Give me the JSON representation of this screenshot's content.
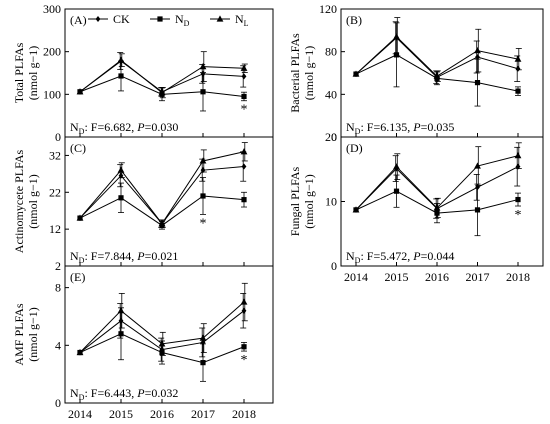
{
  "legend": [
    {
      "label": "CK",
      "sub": "",
      "marker": "diamond"
    },
    {
      "label": "N",
      "sub": "D",
      "marker": "square"
    },
    {
      "label": "N",
      "sub": "L",
      "marker": "triangle"
    }
  ],
  "colors": {
    "ink": "#000000",
    "axis": "#000000",
    "background": "#ffffff"
  },
  "chart_data": [
    {
      "panel": "(A)",
      "type": "line",
      "ylabel": "Total PLFAs",
      "yunit": "(nmol g−1)",
      "x": [
        2014,
        2015,
        2016,
        2017,
        2018
      ],
      "ylim": [
        0,
        300
      ],
      "yticks": [
        0,
        100,
        200,
        300
      ],
      "series": [
        {
          "name": "CK",
          "values": [
            106,
            178,
            106,
            148,
            142
          ],
          "err": [
            0,
            20,
            10,
            22,
            25
          ]
        },
        {
          "name": "ND",
          "values": [
            106,
            143,
            100,
            106,
            95
          ],
          "err": [
            0,
            35,
            15,
            45,
            10
          ]
        },
        {
          "name": "NL",
          "values": [
            106,
            180,
            104,
            165,
            161
          ],
          "err": [
            0,
            15,
            12,
            35,
            10
          ]
        }
      ],
      "stars": [
        "",
        "",
        "",
        "",
        "*"
      ],
      "stat": {
        "prefix": "N",
        "sub": "D",
        "f": ": F=6.682, ",
        "p": "P",
        "pv": "=0.030"
      }
    },
    {
      "panel": "(B)",
      "type": "line",
      "ylabel": "Bacterial PLFAs",
      "yunit": "(nmol g−1)",
      "x": [
        2014,
        2015,
        2016,
        2017,
        2018
      ],
      "ylim": [
        0,
        120
      ],
      "yticks": [
        0,
        40,
        80,
        120
      ],
      "series": [
        {
          "name": "CK",
          "values": [
            59,
            93,
            56,
            75,
            64
          ],
          "err": [
            0,
            15,
            6,
            15,
            12
          ]
        },
        {
          "name": "ND",
          "values": [
            59,
            77,
            55,
            51,
            43
          ],
          "err": [
            0,
            30,
            6,
            22,
            4
          ]
        },
        {
          "name": "NL",
          "values": [
            59,
            94,
            57,
            81,
            73
          ],
          "err": [
            0,
            18,
            5,
            20,
            10
          ]
        }
      ],
      "stars": [
        "",
        "",
        "",
        "",
        ""
      ],
      "stat": {
        "prefix": "N",
        "sub": "D",
        "f": ": F=6.135, ",
        "p": "P",
        "pv": "=0.035"
      }
    },
    {
      "panel": "(C)",
      "type": "line",
      "ylabel": "Actinomycete PLFAs",
      "yunit": "(nmol g−1)",
      "x": [
        2014,
        2015,
        2016,
        2017,
        2018
      ],
      "ylim": [
        2,
        37
      ],
      "yticks": [
        12,
        22,
        32
      ],
      "series": [
        {
          "name": "CK",
          "values": [
            15,
            26.5,
            13.5,
            28,
            29
          ],
          "err": [
            0,
            3,
            1,
            3,
            4
          ]
        },
        {
          "name": "ND",
          "values": [
            15,
            20.5,
            13,
            21,
            20
          ],
          "err": [
            0,
            4,
            1,
            5,
            2
          ]
        },
        {
          "name": "NL",
          "values": [
            15,
            28,
            13.5,
            30.5,
            33
          ],
          "err": [
            0,
            2,
            1,
            3,
            2.5
          ]
        }
      ],
      "stars": [
        "",
        "",
        "",
        "*",
        ""
      ],
      "stat": {
        "prefix": "N",
        "sub": "D",
        "f": ": F=7.844, ",
        "p": "P",
        "pv": "=0.021"
      }
    },
    {
      "panel": "(D)",
      "type": "line",
      "ylabel": "Fungal PLFAs",
      "yunit": "(nmol g−1)",
      "x": [
        2014,
        2015,
        2016,
        2017,
        2018
      ],
      "ylim": [
        0,
        20
      ],
      "yticks": [
        0,
        10,
        20
      ],
      "series": [
        {
          "name": "CK",
          "values": [
            8.7,
            15.1,
            8.9,
            12.2,
            15.4
          ],
          "err": [
            0,
            2,
            1.5,
            2,
            3
          ]
        },
        {
          "name": "ND",
          "values": [
            8.7,
            11.6,
            8.2,
            8.7,
            10.3
          ],
          "err": [
            0,
            2.5,
            1.5,
            4,
            1
          ]
        },
        {
          "name": "NL",
          "values": [
            8.7,
            15.4,
            9.0,
            15.5,
            17.1
          ],
          "err": [
            0,
            2,
            1.5,
            3,
            2
          ]
        }
      ],
      "stars": [
        "",
        "",
        "",
        "",
        "*"
      ],
      "stat": {
        "prefix": "N",
        "sub": "D",
        "f": ": F=5.472, ",
        "p": "P",
        "pv": "=0.044"
      }
    },
    {
      "panel": "(E)",
      "type": "line",
      "ylabel": "AMF PLFAs",
      "yunit": "(nmol g−1)",
      "x": [
        2014,
        2015,
        2016,
        2017,
        2018
      ],
      "ylim": [
        0,
        9.5
      ],
      "yticks": [
        0,
        4,
        8
      ],
      "series": [
        {
          "name": "CK",
          "values": [
            3.5,
            5.7,
            3.7,
            4.2,
            6.4
          ],
          "err": [
            0,
            1.2,
            0.8,
            1,
            1.2
          ]
        },
        {
          "name": "ND",
          "values": [
            3.5,
            4.8,
            3.5,
            2.8,
            3.9
          ],
          "err": [
            0,
            1.8,
            0.8,
            1.3,
            0.3
          ]
        },
        {
          "name": "NL",
          "values": [
            3.5,
            6.4,
            4.1,
            4.5,
            7.0
          ],
          "err": [
            0,
            1.2,
            0.8,
            1,
            1.3
          ]
        }
      ],
      "stars": [
        "",
        "",
        "",
        "",
        "*"
      ],
      "stat": {
        "prefix": "N",
        "sub": "D",
        "f": ": F=6.443, ",
        "p": "P",
        "pv": "=0.032"
      }
    }
  ],
  "extra_ticks": {
    "panel_C_top": "2"
  }
}
